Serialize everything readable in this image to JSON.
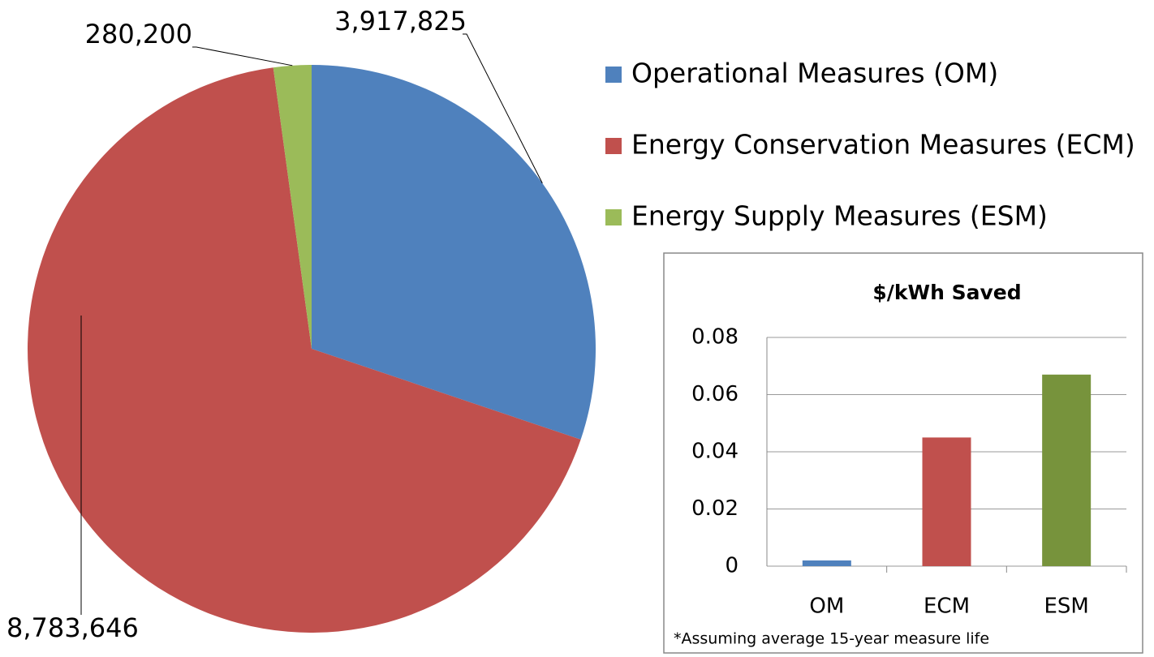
{
  "chart_data": [
    {
      "type": "pie",
      "categories": [
        "Operational Measures (OM)",
        "Energy Conservation Measures (ECM)",
        "Energy Supply Measures (ESM)"
      ],
      "values": [
        3917825,
        8783646,
        280200
      ],
      "value_labels": [
        "3,917,825",
        "8,783,646",
        "280,200"
      ],
      "colors": [
        "#4f81bd",
        "#c0504d",
        "#9bbb59"
      ],
      "legend": "right"
    },
    {
      "type": "bar",
      "title": "$/kWh Saved",
      "categories": [
        "OM",
        "ECM",
        "ESM"
      ],
      "values": [
        0.002,
        0.045,
        0.067
      ],
      "colors": [
        "#4f81bd",
        "#c0504d",
        "#77933c"
      ],
      "ylim": [
        0,
        0.08
      ],
      "yticks": [
        0,
        0.02,
        0.04,
        0.06,
        0.08
      ],
      "grid": true,
      "annotation": "*Assuming average 15-year measure life"
    }
  ]
}
